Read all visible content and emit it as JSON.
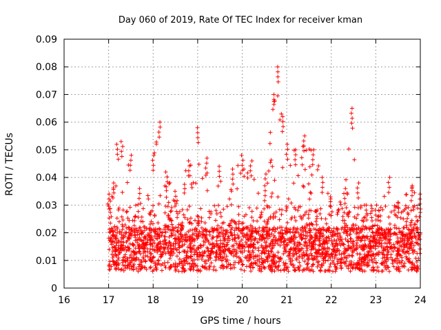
{
  "chart_data": {
    "type": "scatter",
    "title": "Day 060 of 2019, Rate Of TEC Index for receiver kman",
    "xlabel": "GPS time / hours",
    "ylabel": "ROTI / TECUs",
    "xlim": [
      16,
      24
    ],
    "ylim": [
      0,
      0.09
    ],
    "xticks": [
      16,
      17,
      18,
      19,
      20,
      21,
      22,
      23,
      24
    ],
    "xtick_labels": [
      "16",
      "17",
      "18",
      "19",
      "20",
      "21",
      "22",
      "23",
      "24"
    ],
    "yticks": [
      0,
      0.01,
      0.02,
      0.03,
      0.04,
      0.05,
      0.06,
      0.07,
      0.08,
      0.09
    ],
    "ytick_labels": [
      "0",
      "0.01",
      "0.02",
      "0.03",
      "0.04",
      "0.05",
      "0.06",
      "0.07",
      "0.08",
      "0.09"
    ],
    "grid": true,
    "marker": "+",
    "color": "#ff0000",
    "series": [
      {
        "name": "ROTI",
        "sampling": "dense scatter of points from 17.0 to 24.0 h, baseline mostly 0.005-0.025 TECU/min",
        "envelope": {
          "x": [
            17.0,
            17.1,
            17.2,
            17.3,
            17.5,
            17.7,
            18.0,
            18.15,
            18.3,
            18.5,
            18.8,
            19.0,
            19.2,
            19.5,
            19.8,
            20.0,
            20.2,
            20.5,
            20.7,
            20.8,
            20.9,
            21.0,
            21.2,
            21.4,
            21.6,
            21.8,
            22.0,
            22.3,
            22.45,
            22.6,
            22.8,
            23.0,
            23.3,
            23.5,
            23.8,
            24.0
          ],
          "y": [
            0.034,
            0.038,
            0.052,
            0.053,
            0.048,
            0.036,
            0.048,
            0.06,
            0.042,
            0.035,
            0.046,
            0.058,
            0.047,
            0.044,
            0.043,
            0.048,
            0.046,
            0.037,
            0.07,
            0.08,
            0.062,
            0.052,
            0.05,
            0.055,
            0.05,
            0.04,
            0.033,
            0.036,
            0.065,
            0.038,
            0.03,
            0.03,
            0.04,
            0.031,
            0.037,
            0.034
          ]
        }
      }
    ]
  }
}
